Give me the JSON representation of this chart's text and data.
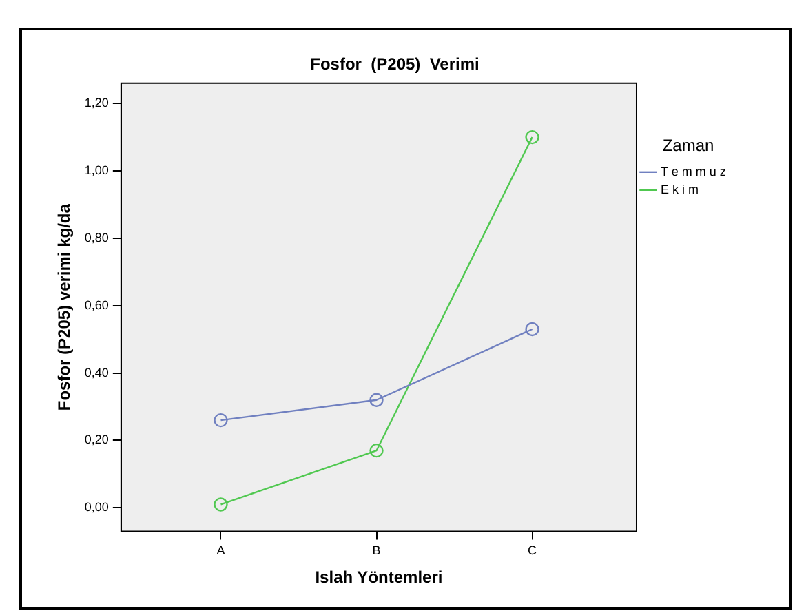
{
  "chart_data": {
    "type": "line",
    "title": "Fosfor  (P205)  Verimi",
    "xlabel": "Islah Yöntemleri",
    "ylabel": "Fosfor (P205) verimi kg/da",
    "legend_title": "Zaman",
    "categories": [
      "A",
      "B",
      "C"
    ],
    "series": [
      {
        "name": "T e m m u z",
        "color": "#7080c0",
        "values": [
          0.26,
          0.32,
          0.53
        ]
      },
      {
        "name": "E k i m",
        "color": "#50c850",
        "values": [
          0.01,
          0.17,
          1.1
        ]
      }
    ],
    "ylim": [
      -0.07,
      1.26
    ],
    "yticks": [
      {
        "value": 0,
        "label": "0,00"
      },
      {
        "value": 0.2,
        "label": "0,20"
      },
      {
        "value": 0.4,
        "label": "0,40"
      },
      {
        "value": 0.6,
        "label": "0,60"
      },
      {
        "value": 0.8,
        "label": "0,80"
      },
      {
        "value": 1.0,
        "label": "1,00"
      },
      {
        "value": 1.2,
        "label": "1,20"
      }
    ],
    "marker": "circle",
    "line_style": "solid",
    "legend": "right",
    "grid": false
  }
}
